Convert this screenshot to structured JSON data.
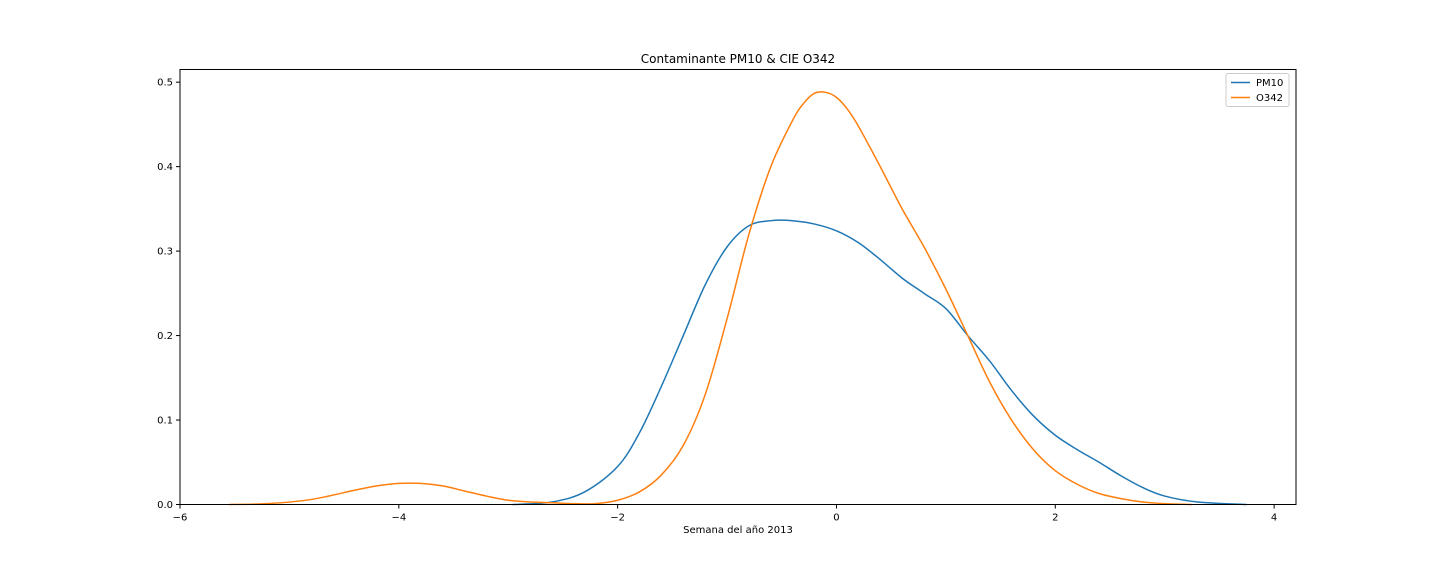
{
  "chart_data": {
    "type": "line",
    "title": "Contaminante PM10 & CIE O342",
    "xlabel": "Semana del año 2013",
    "ylabel": "",
    "xlim": [
      -6,
      4.2
    ],
    "ylim": [
      0,
      0.515
    ],
    "x_ticks": [
      -6,
      -4,
      -2,
      0,
      2,
      4
    ],
    "x_tick_labels": [
      "−6",
      "−4",
      "−2",
      "0",
      "2",
      "4"
    ],
    "y_ticks": [
      0.0,
      0.1,
      0.2,
      0.3,
      0.4,
      0.5
    ],
    "y_tick_labels": [
      "0.0",
      "0.1",
      "0.2",
      "0.3",
      "0.4",
      "0.5"
    ],
    "grid": false,
    "legend_position": "top-right",
    "series": [
      {
        "name": "PM10",
        "color": "#1f77b4",
        "points": [
          [
            -2.96,
            0.0
          ],
          [
            -2.6,
            0.003
          ],
          [
            -2.3,
            0.015
          ],
          [
            -2.0,
            0.045
          ],
          [
            -1.8,
            0.085
          ],
          [
            -1.6,
            0.14
          ],
          [
            -1.4,
            0.2
          ],
          [
            -1.2,
            0.26
          ],
          [
            -1.0,
            0.305
          ],
          [
            -0.8,
            0.33
          ],
          [
            -0.6,
            0.336
          ],
          [
            -0.4,
            0.336
          ],
          [
            -0.2,
            0.332
          ],
          [
            0.0,
            0.324
          ],
          [
            0.2,
            0.31
          ],
          [
            0.4,
            0.29
          ],
          [
            0.6,
            0.268
          ],
          [
            0.8,
            0.25
          ],
          [
            1.0,
            0.232
          ],
          [
            1.2,
            0.2
          ],
          [
            1.4,
            0.17
          ],
          [
            1.6,
            0.135
          ],
          [
            1.8,
            0.105
          ],
          [
            2.0,
            0.082
          ],
          [
            2.2,
            0.065
          ],
          [
            2.4,
            0.05
          ],
          [
            2.6,
            0.034
          ],
          [
            2.8,
            0.02
          ],
          [
            3.0,
            0.01
          ],
          [
            3.3,
            0.003
          ],
          [
            3.75,
            0.0
          ]
        ]
      },
      {
        "name": "O342",
        "color": "#ff7f0e",
        "points": [
          [
            -5.55,
            0.0
          ],
          [
            -5.2,
            0.001
          ],
          [
            -4.8,
            0.006
          ],
          [
            -4.4,
            0.017
          ],
          [
            -4.2,
            0.022
          ],
          [
            -4.0,
            0.025
          ],
          [
            -3.8,
            0.025
          ],
          [
            -3.6,
            0.022
          ],
          [
            -3.4,
            0.016
          ],
          [
            -3.2,
            0.01
          ],
          [
            -3.0,
            0.005
          ],
          [
            -2.8,
            0.003
          ],
          [
            -2.6,
            0.002
          ],
          [
            -2.4,
            0.001
          ],
          [
            -2.2,
            0.001
          ],
          [
            -2.0,
            0.005
          ],
          [
            -1.8,
            0.015
          ],
          [
            -1.6,
            0.035
          ],
          [
            -1.4,
            0.07
          ],
          [
            -1.2,
            0.13
          ],
          [
            -1.0,
            0.22
          ],
          [
            -0.8,
            0.32
          ],
          [
            -0.6,
            0.4
          ],
          [
            -0.4,
            0.455
          ],
          [
            -0.3,
            0.475
          ],
          [
            -0.2,
            0.487
          ],
          [
            -0.1,
            0.488
          ],
          [
            0.0,
            0.482
          ],
          [
            0.1,
            0.468
          ],
          [
            0.2,
            0.448
          ],
          [
            0.4,
            0.4
          ],
          [
            0.6,
            0.35
          ],
          [
            0.8,
            0.305
          ],
          [
            1.0,
            0.255
          ],
          [
            1.2,
            0.2
          ],
          [
            1.4,
            0.145
          ],
          [
            1.6,
            0.1
          ],
          [
            1.8,
            0.065
          ],
          [
            2.0,
            0.04
          ],
          [
            2.2,
            0.024
          ],
          [
            2.4,
            0.013
          ],
          [
            2.6,
            0.007
          ],
          [
            2.8,
            0.003
          ],
          [
            3.0,
            0.001
          ],
          [
            3.25,
            0.0
          ]
        ]
      }
    ]
  }
}
